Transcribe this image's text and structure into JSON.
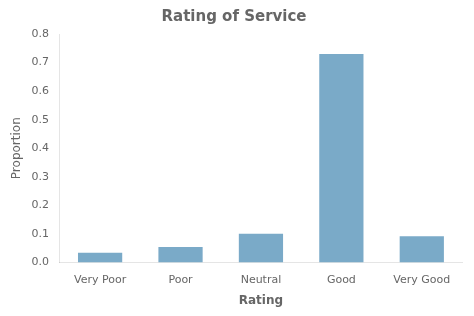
{
  "chart_data": {
    "type": "bar",
    "title": "Rating of Service",
    "xlabel": "Rating",
    "ylabel": "Proportion",
    "categories": [
      "Very Poor",
      "Poor",
      "Neutral",
      "Good",
      "Very Good"
    ],
    "values": [
      0.034,
      0.054,
      0.1,
      0.73,
      0.092
    ],
    "color": "#7aaac8",
    "ylim": [
      0.0,
      0.8
    ],
    "yticks": [
      {
        "value": 0.0,
        "label": "0.0"
      },
      0.1,
      0.2,
      0.3,
      0.4,
      0.5,
      0.6,
      0.7,
      0.8
    ],
    "grid": false
  }
}
